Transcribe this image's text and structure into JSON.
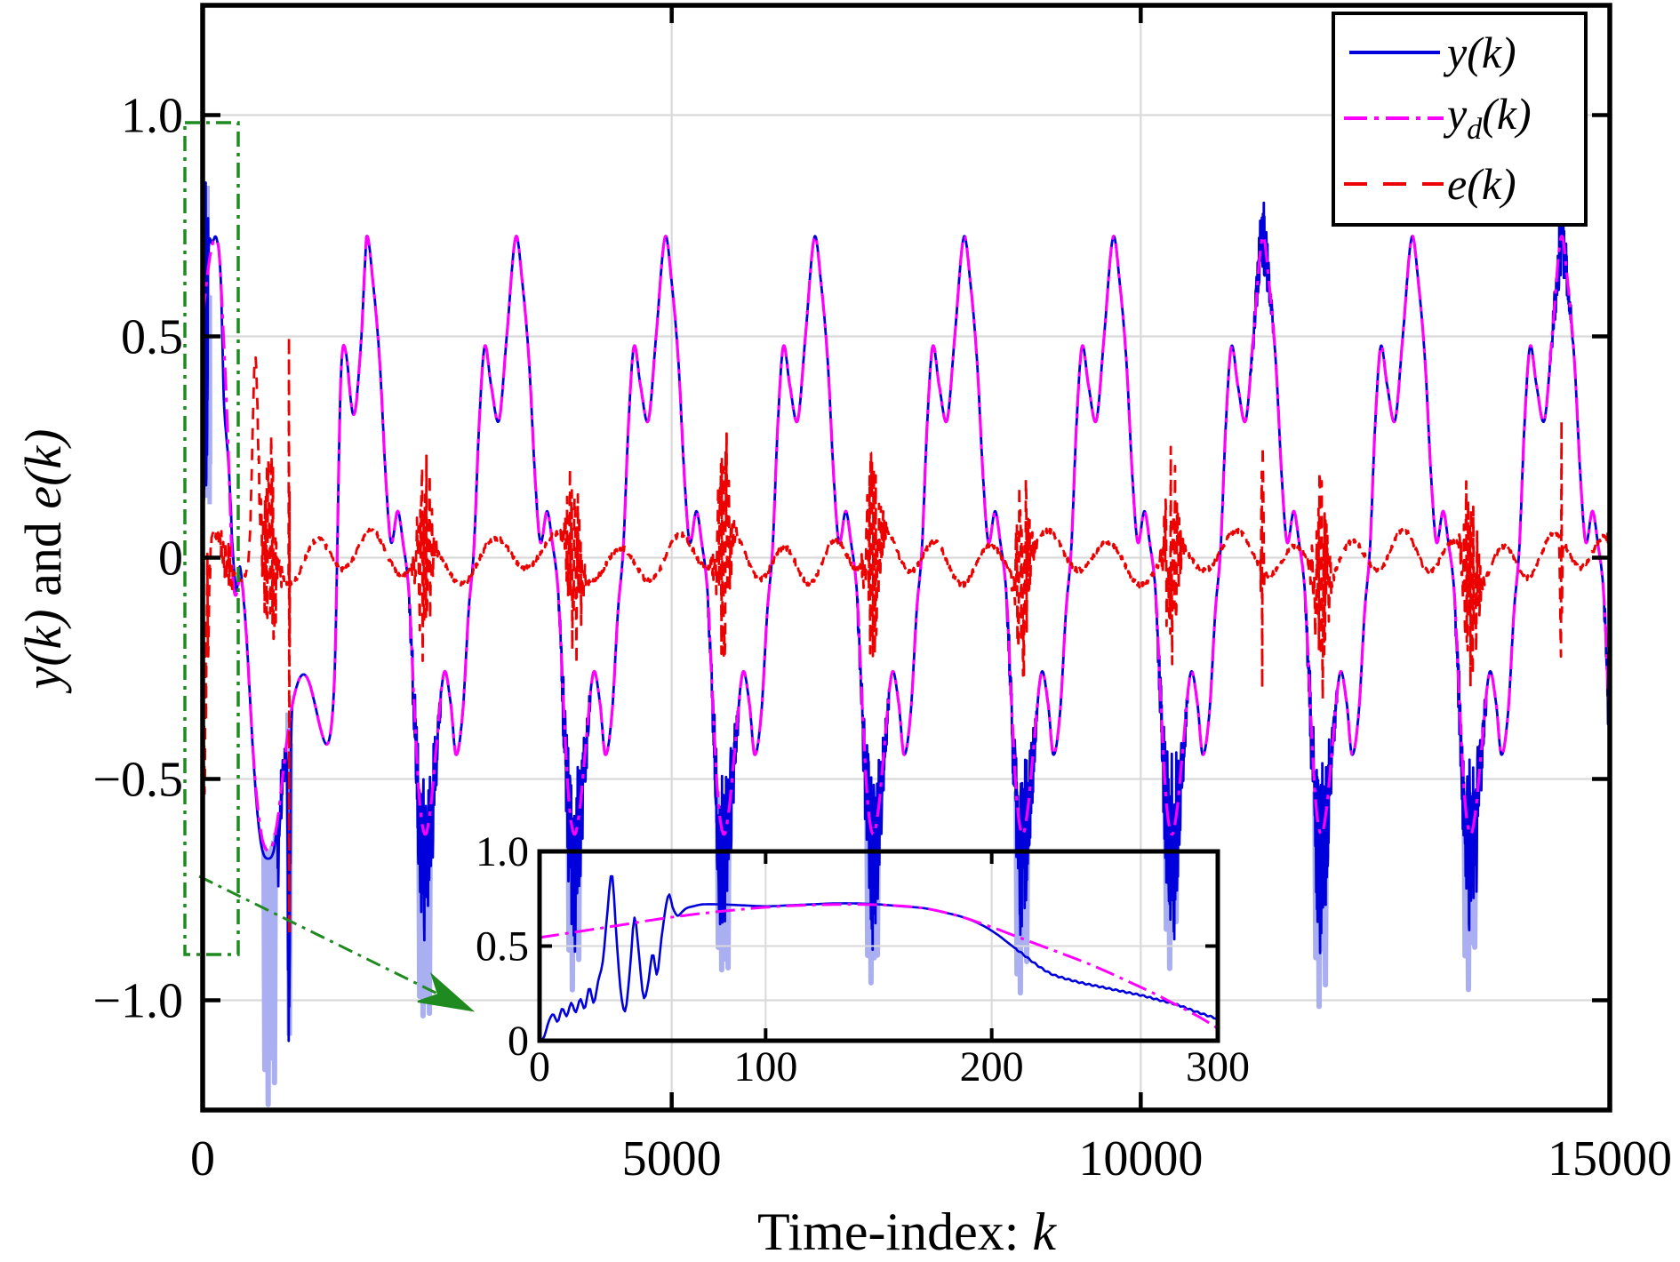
{
  "chart_data": {
    "type": "line",
    "title": "",
    "xlabel_parts": [
      "Time-index: ",
      "k"
    ],
    "ylabel_parts": [
      "y(k)",
      " and ",
      "e(k)"
    ],
    "x_axis": {
      "lim": [
        0,
        15000
      ],
      "ticks": [
        0,
        5000,
        10000,
        15000
      ],
      "tick_labels": [
        "0",
        "5000",
        "10000",
        "15000"
      ]
    },
    "y_axis": {
      "lim": [
        -1.248,
        1.248
      ],
      "ticks": [
        1.0,
        0.5,
        0,
        -0.5,
        -1.0
      ],
      "tick_labels": [
        "1.0",
        "0.5",
        "0",
        "−0.5",
        "−1.0"
      ]
    },
    "grid": true,
    "colors": {
      "y_line": "#0000dd",
      "yd_line": "#ff00ff",
      "e_line": "#ec0000",
      "light_spike": "#a9aff1",
      "grid": "#d9d9d9",
      "annotation_green": "#1f8a1f",
      "axis": "#000000"
    },
    "legend": {
      "position": "top-right",
      "items": [
        {
          "id": "y",
          "main": "y",
          "sub": "",
          "rest": "(k)",
          "color": "#0000dd",
          "style": "solid"
        },
        {
          "id": "yd",
          "main": "y",
          "sub": "d",
          "rest": "(k)",
          "color": "#ff00ff",
          "style": "dash-dot"
        },
        {
          "id": "e",
          "main": "e",
          "sub": "",
          "rest": "(k)",
          "color": "#ec0000",
          "style": "dashed"
        }
      ]
    },
    "series": {
      "yd": {
        "name": "yd(k)",
        "description": "Desired periodic reference trajectory, period 1592 samples, tall peak 0.72, medium peak 0.48, deep trough -0.63",
        "period": 1592,
        "anchor_peak_k": 1745,
        "startup_keypoints": [
          [
            0,
            0.545
          ],
          [
            30,
            0.6
          ],
          [
            60,
            0.655
          ],
          [
            90,
            0.695
          ],
          [
            110,
            0.712
          ],
          [
            125,
            0.718
          ],
          [
            140,
            0.72
          ],
          [
            155,
            0.715
          ],
          [
            170,
            0.7
          ],
          [
            185,
            0.66
          ],
          [
            200,
            0.6
          ],
          [
            210,
            0.555
          ],
          [
            220,
            0.51
          ],
          [
            230,
            0.465
          ],
          [
            240,
            0.42
          ],
          [
            250,
            0.37
          ],
          [
            260,
            0.315
          ],
          [
            270,
            0.26
          ],
          [
            280,
            0.2
          ],
          [
            288,
            0.15
          ],
          [
            294,
            0.11
          ],
          [
            300,
            0.065
          ],
          [
            310,
            0.01
          ],
          [
            320,
            -0.04
          ],
          [
            335,
            -0.075
          ],
          [
            355,
            -0.085
          ],
          [
            375,
            -0.065
          ],
          [
            395,
            -0.045
          ],
          [
            415,
            -0.05
          ],
          [
            440,
            -0.1
          ],
          [
            470,
            -0.19
          ],
          [
            505,
            -0.32
          ],
          [
            545,
            -0.46
          ],
          [
            590,
            -0.57
          ],
          [
            640,
            -0.64
          ],
          [
            700,
            -0.662
          ],
          [
            750,
            -0.645
          ],
          [
            800,
            -0.59
          ],
          [
            850,
            -0.5
          ],
          [
            900,
            -0.41
          ],
          [
            945,
            -0.345
          ],
          [
            990,
            -0.3
          ],
          [
            1040,
            -0.27
          ],
          [
            1090,
            -0.265
          ],
          [
            1140,
            -0.285
          ],
          [
            1195,
            -0.33
          ],
          [
            1255,
            -0.385
          ],
          [
            1310,
            -0.42
          ],
          [
            1350,
            -0.41
          ],
          [
            1385,
            -0.35
          ],
          [
            1410,
            -0.24
          ],
          [
            1432,
            -0.02
          ],
          [
            1452,
            0.22
          ],
          [
            1472,
            0.4
          ],
          [
            1492,
            0.47
          ],
          [
            1512,
            0.477
          ],
          [
            1542,
            0.44
          ],
          [
            1572,
            0.37
          ],
          [
            1602,
            0.325
          ],
          [
            1632,
            0.34
          ],
          [
            1662,
            0.41
          ],
          [
            1695,
            0.51
          ],
          [
            1722,
            0.63
          ],
          [
            1745,
            0.724
          ]
        ],
        "periodic_keypoints": [
          [
            0,
            0.724
          ],
          [
            0.045,
            0.62
          ],
          [
            0.09,
            0.44
          ],
          [
            0.13,
            0.18
          ],
          [
            0.165,
            0.035
          ],
          [
            0.21,
            0.105
          ],
          [
            0.245,
            0.035
          ],
          [
            0.285,
            -0.08
          ],
          [
            0.32,
            -0.33
          ],
          [
            0.355,
            -0.545
          ],
          [
            0.393,
            -0.625
          ],
          [
            0.43,
            -0.565
          ],
          [
            0.465,
            -0.44
          ],
          [
            0.52,
            -0.26
          ],
          [
            0.565,
            -0.33
          ],
          [
            0.6,
            -0.445
          ],
          [
            0.645,
            -0.35
          ],
          [
            0.685,
            -0.12
          ],
          [
            0.72,
            0.02
          ],
          [
            0.755,
            0.3
          ],
          [
            0.792,
            0.477
          ],
          [
            0.835,
            0.39
          ],
          [
            0.888,
            0.31
          ],
          [
            0.94,
            0.5
          ],
          [
            1,
            0.724
          ]
        ]
      },
      "y": {
        "name": "y(k)",
        "description": "Controlled output: noisy startup transient 0..80, tracks yd afterwards with noise bursts at each deep trough and at two late peaks",
        "startup_keypoints": [
          [
            0,
            0
          ],
          [
            2,
            0.02
          ],
          [
            4,
            0.1
          ],
          [
            6,
            0.14
          ],
          [
            8,
            0.1
          ],
          [
            10,
            0.17
          ],
          [
            12,
            0.13
          ],
          [
            14,
            0.2
          ],
          [
            16,
            0.15
          ],
          [
            18,
            0.22
          ],
          [
            20,
            0.17
          ],
          [
            22,
            0.28
          ],
          [
            24,
            0.2
          ],
          [
            26,
            0.32
          ],
          [
            28,
            0.42
          ],
          [
            30,
            0.68
          ],
          [
            32,
            0.88
          ],
          [
            34,
            0.55
          ],
          [
            36,
            0.25
          ],
          [
            38,
            0.16
          ],
          [
            40,
            0.38
          ],
          [
            42,
            0.65
          ],
          [
            44,
            0.45
          ],
          [
            46,
            0.23
          ],
          [
            48,
            0.3
          ],
          [
            50,
            0.46
          ],
          [
            52,
            0.35
          ],
          [
            54,
            0.55
          ],
          [
            57,
            0.77
          ],
          [
            59,
            0.7
          ],
          [
            61,
            0.66
          ],
          [
            63,
            0.68
          ],
          [
            65,
            0.7
          ],
          [
            68,
            0.71
          ],
          [
            72,
            0.72
          ],
          [
            80,
            0.72
          ],
          [
            90,
            0.715
          ],
          [
            100,
            0.71
          ],
          [
            110,
            0.715
          ],
          [
            120,
            0.72
          ],
          [
            130,
            0.725
          ],
          [
            140,
            0.725
          ],
          [
            150,
            0.72
          ],
          [
            160,
            0.71
          ],
          [
            170,
            0.7
          ],
          [
            180,
            0.675
          ],
          [
            188,
            0.65
          ],
          [
            195,
            0.615
          ],
          [
            202,
            0.565
          ],
          [
            208,
            0.51
          ],
          [
            214,
            0.455
          ],
          [
            220,
            0.4
          ],
          [
            226,
            0.355
          ],
          [
            232,
            0.33
          ],
          [
            240,
            0.305
          ],
          [
            250,
            0.28
          ],
          [
            258,
            0.26
          ],
          [
            266,
            0.24
          ],
          [
            274,
            0.215
          ],
          [
            282,
            0.19
          ],
          [
            290,
            0.155
          ],
          [
            300,
            0.115
          ],
          [
            310,
            0.055
          ],
          [
            320,
            0.02
          ],
          [
            332,
            -0.02
          ],
          [
            345,
            -0.05
          ],
          [
            360,
            -0.075
          ],
          [
            378,
            -0.05
          ],
          [
            395,
            -0.02
          ],
          [
            412,
            -0.04
          ],
          [
            435,
            -0.09
          ],
          [
            465,
            -0.17
          ],
          [
            500,
            -0.3
          ],
          [
            540,
            -0.45
          ],
          [
            585,
            -0.58
          ],
          [
            635,
            -0.66
          ],
          [
            700,
            -0.68
          ],
          [
            760,
            -0.66
          ],
          [
            800,
            -0.59
          ]
        ],
        "merge_k": 800,
        "trough_noise_amp": 0.12,
        "peak_noise_amp": 0.05
      },
      "e": {
        "name": "e(k)",
        "description": "Tracking error: near-zero dashed wiggle, bursts +-0.17 at trough instants, large startup transient to -0.75, isolated spike at k=920 spanning +0.5..-0.85",
        "base_amp": 0.042,
        "burst_amp": 0.16,
        "initial_amp": 0.75,
        "arc_bump": {
          "k": 560,
          "peak": 0.45
        },
        "transient_spike": {
          "k": 920,
          "top": 0.5,
          "bottom": -0.85
        },
        "peak_spike_amp": 0.3
      }
    },
    "events": {
      "trough_centers": [
        720,
        2371,
        3963,
        5555,
        7147,
        8739,
        10331,
        11923,
        13515,
        15107
      ],
      "light_spike_depths": [
        -1.15,
        -1.02,
        -0.88,
        -0.92,
        -0.86,
        -0.9,
        -0.87,
        -0.93,
        -0.89,
        -0.78
      ],
      "noisy_peak_centers": [
        11297,
        14481
      ],
      "transient_spike": {
        "k": 920,
        "depth": -1.2
      }
    },
    "inset": {
      "zoom_source_region": {
        "k": [
          -190,
          380
        ],
        "v": [
          -0.9,
          0.98
        ]
      },
      "x_axis": {
        "lim": [
          0,
          300
        ],
        "ticks": [
          0,
          100,
          200,
          300
        ],
        "tick_labels": [
          "0",
          "100",
          "200",
          "300"
        ]
      },
      "y_axis": {
        "lim": [
          0,
          1.0
        ],
        "ticks": [
          0,
          0.5,
          1.0
        ],
        "tick_labels": [
          "0",
          "0.5",
          "1.0"
        ]
      },
      "blue_keypoints": [
        [
          0,
          0
        ],
        [
          2,
          0.02
        ],
        [
          4,
          0.1
        ],
        [
          6,
          0.14
        ],
        [
          8,
          0.1
        ],
        [
          10,
          0.17
        ],
        [
          12,
          0.13
        ],
        [
          14,
          0.2
        ],
        [
          16,
          0.15
        ],
        [
          18,
          0.22
        ],
        [
          20,
          0.17
        ],
        [
          22,
          0.28
        ],
        [
          24,
          0.2
        ],
        [
          26,
          0.32
        ],
        [
          28,
          0.42
        ],
        [
          30,
          0.68
        ],
        [
          32,
          0.88
        ],
        [
          34,
          0.55
        ],
        [
          36,
          0.25
        ],
        [
          38,
          0.16
        ],
        [
          40,
          0.38
        ],
        [
          42,
          0.65
        ],
        [
          44,
          0.45
        ],
        [
          46,
          0.23
        ],
        [
          48,
          0.3
        ],
        [
          50,
          0.46
        ],
        [
          52,
          0.35
        ],
        [
          54,
          0.55
        ],
        [
          57,
          0.77
        ],
        [
          59,
          0.7
        ],
        [
          61,
          0.66
        ],
        [
          63,
          0.68
        ],
        [
          65,
          0.7
        ],
        [
          68,
          0.71
        ],
        [
          72,
          0.72
        ],
        [
          80,
          0.72
        ],
        [
          90,
          0.715
        ],
        [
          100,
          0.71
        ],
        [
          110,
          0.715
        ],
        [
          120,
          0.72
        ],
        [
          130,
          0.725
        ],
        [
          140,
          0.725
        ],
        [
          150,
          0.72
        ],
        [
          160,
          0.71
        ],
        [
          170,
          0.7
        ],
        [
          180,
          0.675
        ],
        [
          188,
          0.65
        ],
        [
          195,
          0.615
        ],
        [
          202,
          0.565
        ],
        [
          208,
          0.51
        ],
        [
          214,
          0.455
        ],
        [
          220,
          0.4
        ],
        [
          226,
          0.355
        ],
        [
          232,
          0.33
        ],
        [
          240,
          0.305
        ],
        [
          250,
          0.28
        ],
        [
          258,
          0.26
        ],
        [
          266,
          0.24
        ],
        [
          274,
          0.215
        ],
        [
          282,
          0.19
        ],
        [
          290,
          0.155
        ],
        [
          300,
          0.115
        ]
      ],
      "magenta_keypoints": [
        [
          0,
          0.545
        ],
        [
          30,
          0.6
        ],
        [
          60,
          0.655
        ],
        [
          90,
          0.695
        ],
        [
          110,
          0.712
        ],
        [
          125,
          0.718
        ],
        [
          140,
          0.72
        ],
        [
          155,
          0.715
        ],
        [
          170,
          0.7
        ],
        [
          185,
          0.66
        ],
        [
          200,
          0.6
        ],
        [
          210,
          0.555
        ],
        [
          220,
          0.51
        ],
        [
          230,
          0.465
        ],
        [
          240,
          0.42
        ],
        [
          250,
          0.37
        ],
        [
          260,
          0.315
        ],
        [
          270,
          0.26
        ],
        [
          280,
          0.2
        ],
        [
          288,
          0.15
        ],
        [
          294,
          0.11
        ],
        [
          300,
          0.065
        ]
      ]
    },
    "annotation": {
      "meaning": "green dash-dot rectangle around startup transient, arrow pointing to inset zoom"
    }
  }
}
